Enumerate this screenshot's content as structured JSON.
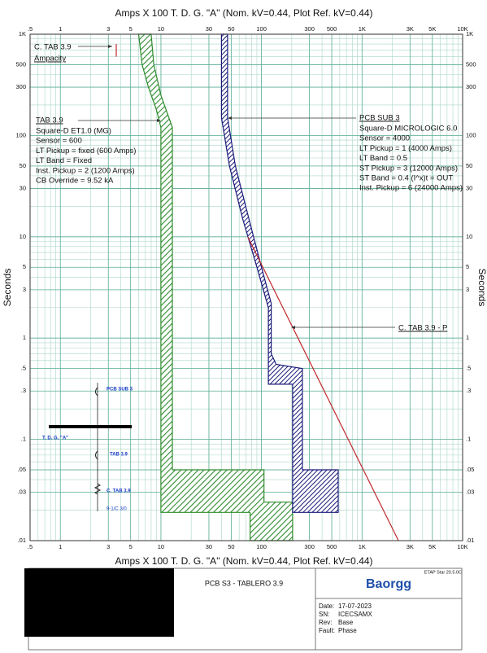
{
  "chart_data": {
    "type": "tcc",
    "x_label": "Amps  X  100   T. D. G. \"A\" (Nom. kV=0.44, Plot Ref. kV=0.44)",
    "y_label": "Seconds",
    "log_x": true,
    "log_y": true,
    "grid": true,
    "minor_grid": true,
    "xlim": [
      0.5,
      10000
    ],
    "ylim": [
      0.01,
      1000
    ],
    "xticks": [
      {
        "value": 0.5,
        "label": ".5"
      },
      1,
      3,
      5,
      10,
      30,
      50,
      100,
      300,
      500,
      {
        "value": 1000,
        "label": "1K"
      },
      {
        "value": 3000,
        "label": "3K"
      },
      {
        "value": 5000,
        "label": "5K"
      },
      {
        "value": 10000,
        "label": "10K"
      }
    ],
    "yticks": [
      {
        "value": 0.01,
        "label": ".01"
      },
      {
        "value": 0.03,
        "label": ".03"
      },
      {
        "value": 0.05,
        "label": ".05"
      },
      {
        "value": 0.1,
        "label": ".1"
      },
      {
        "value": 0.3,
        "label": ".3"
      },
      {
        "value": 0.5,
        "label": ".5"
      },
      1,
      3,
      5,
      10,
      30,
      50,
      100,
      300,
      500,
      {
        "value": 1000,
        "label": "1K"
      }
    ],
    "series": [
      {
        "name": "TAB 3.9",
        "kind": "band",
        "color": "#2e8b2e",
        "info": [
          "Square-D  ET1.0 (MG)",
          "Sensor = 600",
          "LT Pickup = fixed (600 Amps)",
          "LT Band = Fixed",
          "Inst. Pickup = 2 (1200 Amps)",
          "CB Override = 9.52 kA"
        ],
        "x": [
          8,
          8.5,
          10,
          12,
          13,
          13,
          106,
          106,
          204,
          204,
          77,
          77,
          10,
          10,
          9,
          7.5,
          6.5,
          6
        ],
        "y": [
          1000,
          500,
          250,
          150,
          120,
          0.05,
          0.05,
          0.024,
          0.024,
          0.01,
          0.01,
          0.019,
          0.019,
          120,
          180,
          300,
          500,
          1000
        ]
      },
      {
        "name": "PCB SUB 3",
        "kind": "band",
        "color": "#1a1a7a",
        "info": [
          "Square-D  MICROLOGIC 6.0",
          "Sensor = 4000",
          "LT Pickup = 1 (4000 Amps)",
          "LT Band = 0.5",
          "ST Pickup = 3 (12000 Amps)",
          "ST Band = 0.4  (I^x)t = OUT",
          "Inst. Pickup = 6 (24000 Amps)"
        ],
        "x": [
          46,
          46,
          55,
          75,
          100,
          125,
          125,
          140,
          255,
          255,
          580,
          580,
          204,
          204,
          117,
          117,
          90,
          65,
          48,
          40,
          40
        ],
        "y": [
          1000,
          150,
          50,
          15,
          5,
          2.2,
          0.7,
          0.55,
          0.5,
          0.05,
          0.05,
          0.019,
          0.019,
          0.35,
          0.35,
          2,
          5,
          15,
          50,
          150,
          1000
        ]
      },
      {
        "name": "C. TAB 3.9 - P",
        "kind": "line",
        "color": "#c0282d",
        "x": [
          73,
          2300
        ],
        "y": [
          10,
          0.01
        ]
      },
      {
        "name": "C. TAB 3.9",
        "kind": "line",
        "color": "#c0282d",
        "label": "Ampacity",
        "x": [
          3.6,
          3.6
        ],
        "y": [
          800,
          600
        ]
      }
    ]
  },
  "one_line": {
    "bus": "T. D. G. \"A\"",
    "breaker_1": "PCB SUB 3",
    "breaker_2": "TAB 3.9",
    "cable": "C. TAB 3.9",
    "cable_size": "9-1/C 3/0"
  },
  "footer": {
    "software": "ETAP Star 20.5.0C",
    "project": "PCB S3 - TABLERO 3.9",
    "company": "Baorgg",
    "fields": [
      [
        "Date:",
        "17-07-2023"
      ],
      [
        "SN:",
        "ICECSAMX"
      ],
      [
        "Rev:",
        "Base"
      ],
      [
        "Fault:",
        "Phase"
      ]
    ]
  }
}
